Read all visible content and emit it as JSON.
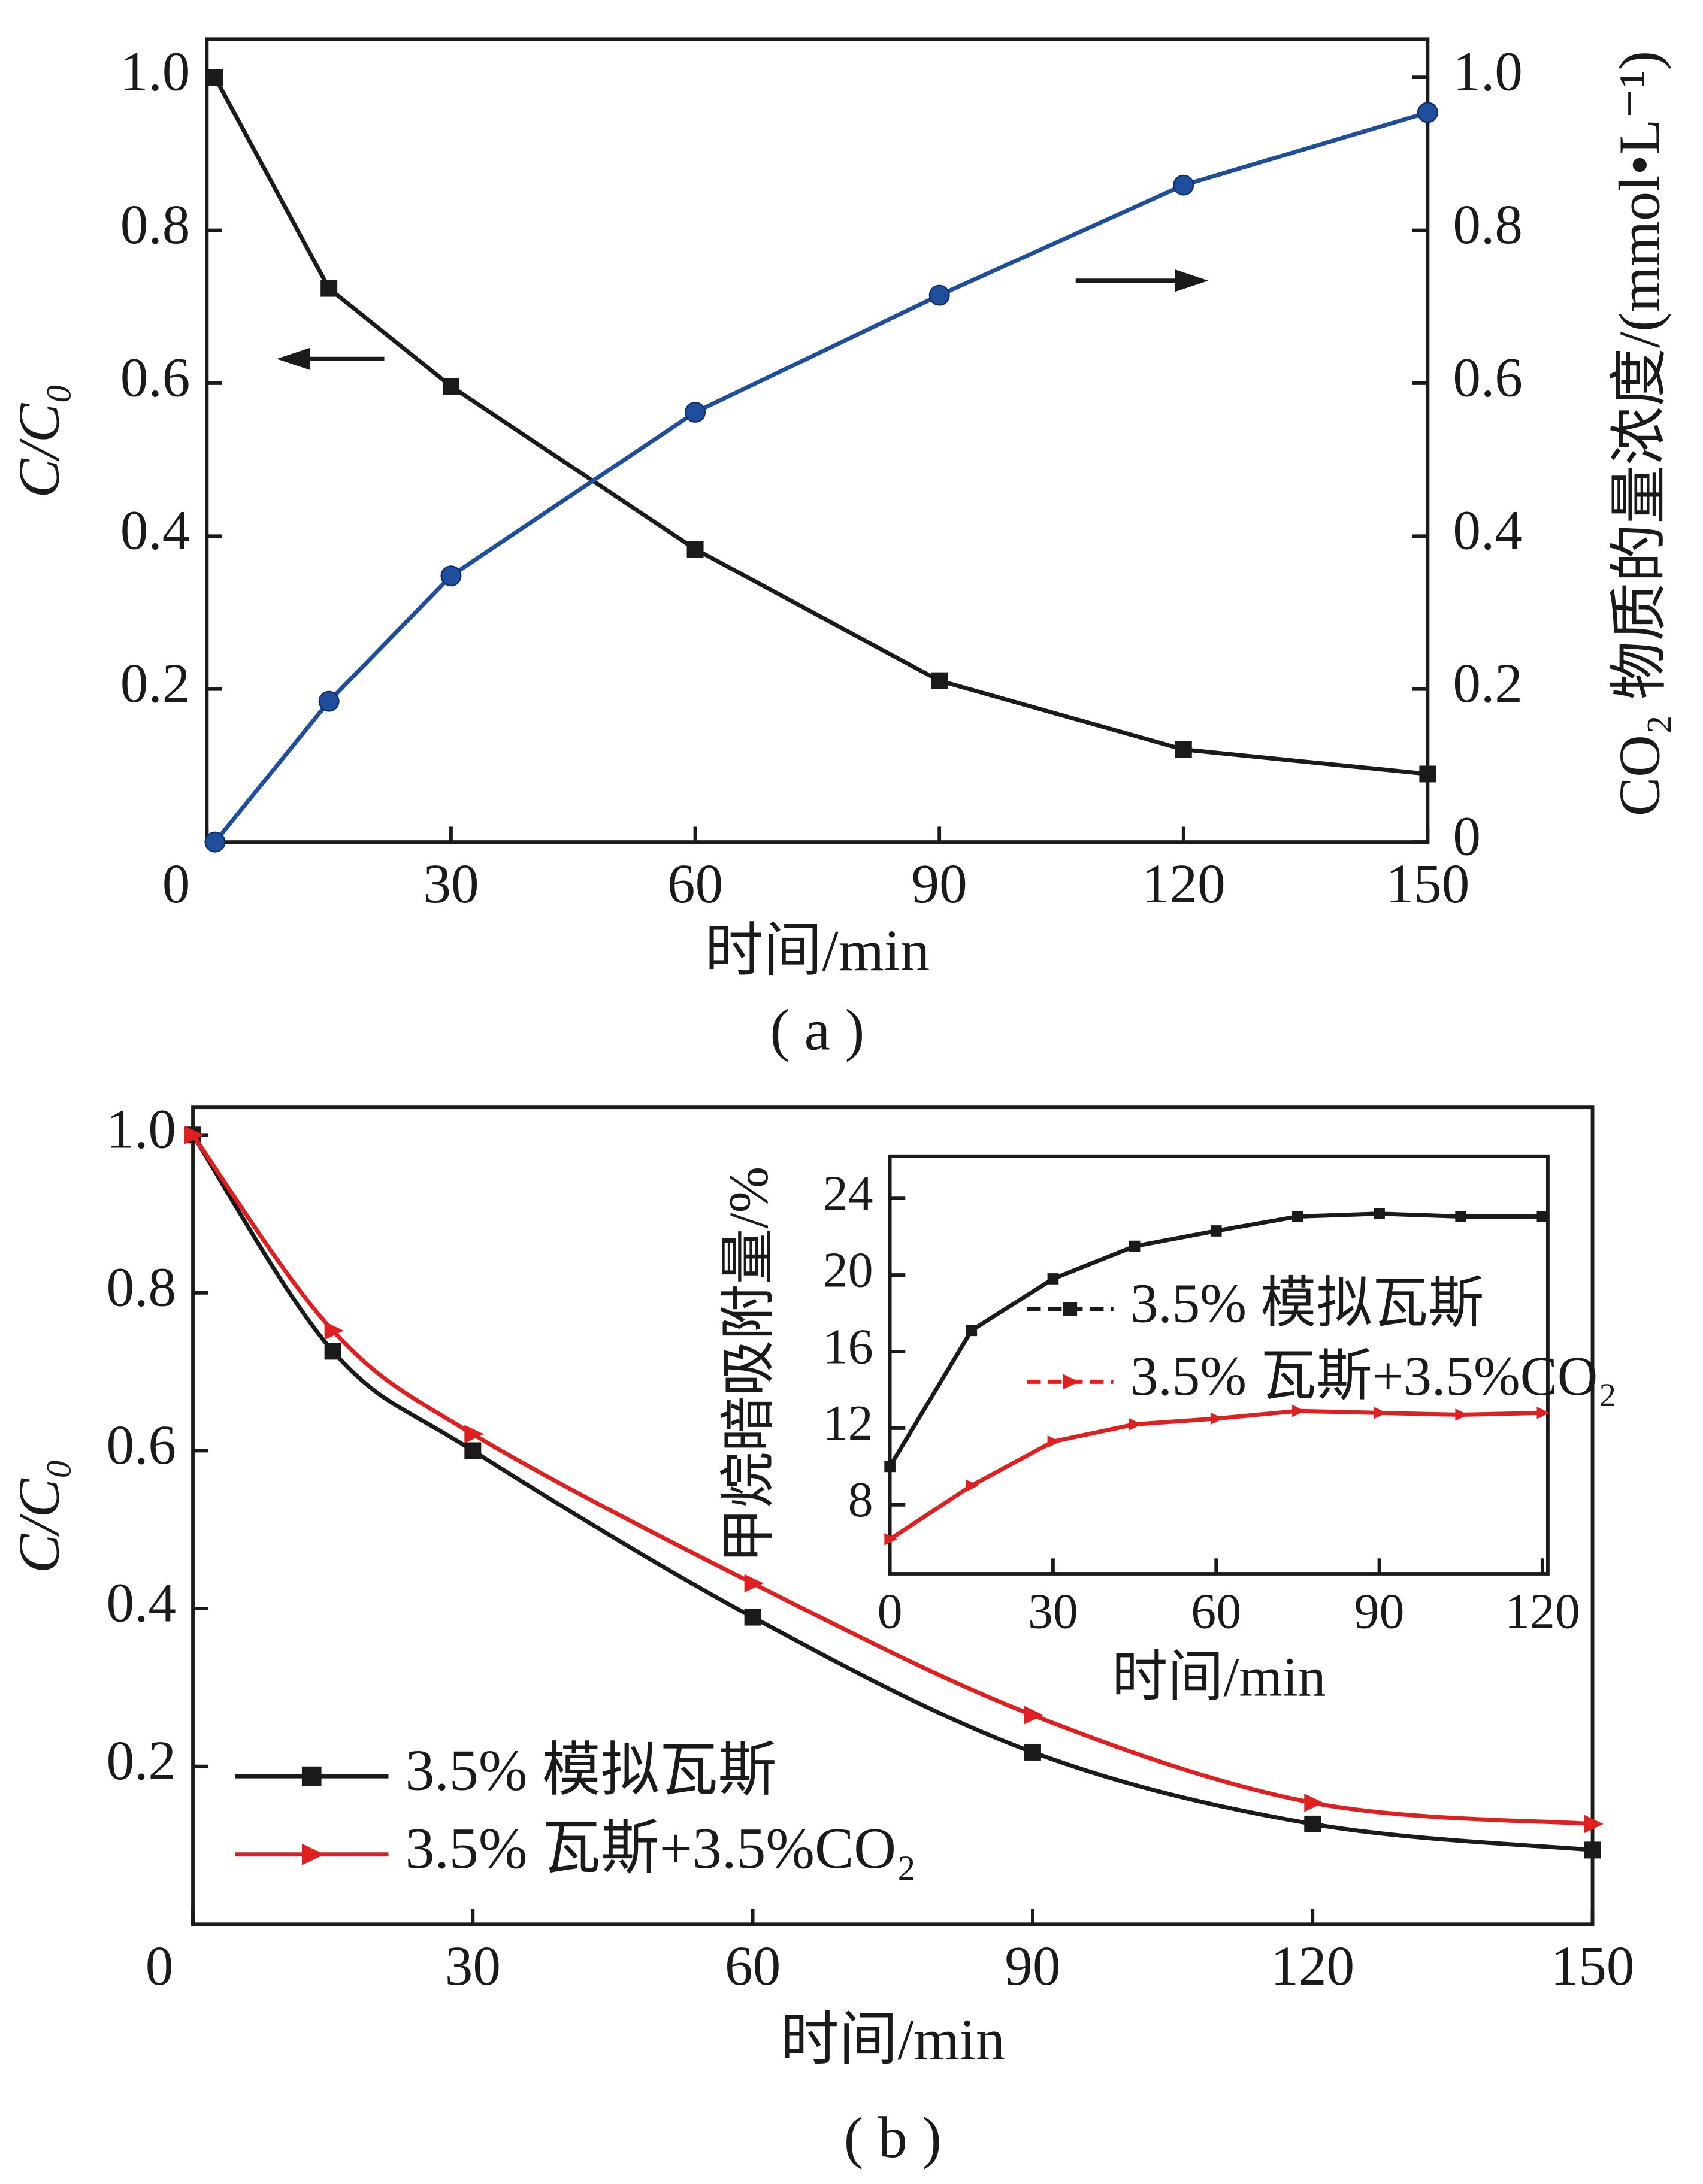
{
  "chart_data": [
    {
      "type": "line",
      "xlabel": "时间/min",
      "ylabel": "C/C₀",
      "y2label": "CO₂ 物质的量浓度/(mmol•L⁻¹)",
      "caption": "( a )",
      "x": [
        1,
        15,
        30,
        60,
        90,
        120,
        150
      ],
      "xlim": [
        0,
        150
      ],
      "xticks": [
        0,
        30,
        60,
        90,
        120,
        150
      ],
      "ylim": [
        0,
        1.05
      ],
      "yticks": [
        0.2,
        0.4,
        0.6,
        0.8,
        {
          "value": 1,
          "label": "1.0"
        }
      ],
      "y2lim": [
        0,
        1.05
      ],
      "y2ticks": [
        0,
        0.2,
        0.4,
        0.6,
        0.8,
        {
          "value": 1,
          "label": "1.0"
        }
      ],
      "series": [
        {
          "color": "#1a1a1a",
          "marker": "square",
          "values": [
            1.0,
            0.724,
            0.596,
            0.383,
            0.211,
            0.121,
            0.089
          ]
        },
        {
          "color": "#1f4e9c",
          "marker": "circle",
          "axis": "y2",
          "values": [
            0,
            0.184,
            0.348,
            0.562,
            0.715,
            0.859,
            0.954
          ]
        }
      ]
    },
    {
      "type": "line",
      "smooth": true,
      "xlabel": "时间/min",
      "ylabel": "C/C₀",
      "caption": "( b )",
      "x": [
        0,
        15,
        30,
        60,
        90,
        120,
        150
      ],
      "xlim": [
        0,
        150
      ],
      "xticks": [
        0,
        30,
        60,
        90,
        120,
        150
      ],
      "ylim": [
        0,
        1.035
      ],
      "yticks": [
        0.2,
        0.4,
        0.6,
        0.8,
        {
          "value": 1,
          "label": "1.0"
        }
      ],
      "legend": "lower left",
      "series": [
        {
          "name": "3.5% 模拟瓦斯",
          "color": "#1a1a1a",
          "marker": "square",
          "values": [
            1.0,
            0.726,
            0.6,
            0.389,
            0.218,
            0.127,
            0.094
          ]
        },
        {
          "name": "3.5% 瓦斯+3.5%CO₂",
          "color": "#e02020",
          "marker": "triangle",
          "values": [
            1.0,
            0.752,
            0.621,
            0.432,
            0.265,
            0.154,
            0.127
          ]
        }
      ]
    },
    {
      "type": "line",
      "dashed": true,
      "xlabel": "时间/min",
      "ylabel": "甲烷暗吸附量/%",
      "x": [
        0,
        15,
        30,
        45,
        60,
        75,
        90,
        105,
        120
      ],
      "xlim": [
        0,
        121
      ],
      "xticks": [
        0,
        30,
        60,
        90,
        120
      ],
      "ylim": [
        4.4,
        26.2
      ],
      "yticks": [
        8,
        12,
        16,
        20,
        24
      ],
      "legend": "center left",
      "series": [
        {
          "name": "3.5% 模拟瓦斯",
          "color": "#1a1a1a",
          "marker": "square",
          "values": [
            10.0,
            17.1,
            19.8,
            21.5,
            22.3,
            23.05,
            23.2,
            23.05,
            23.05
          ]
        },
        {
          "name": "3.5% 瓦斯+3.5%CO₂",
          "color": "#e02020",
          "marker": "triangle",
          "values": [
            6.2,
            9.0,
            11.3,
            12.2,
            12.5,
            12.9,
            12.8,
            12.7,
            12.8
          ]
        }
      ]
    }
  ]
}
